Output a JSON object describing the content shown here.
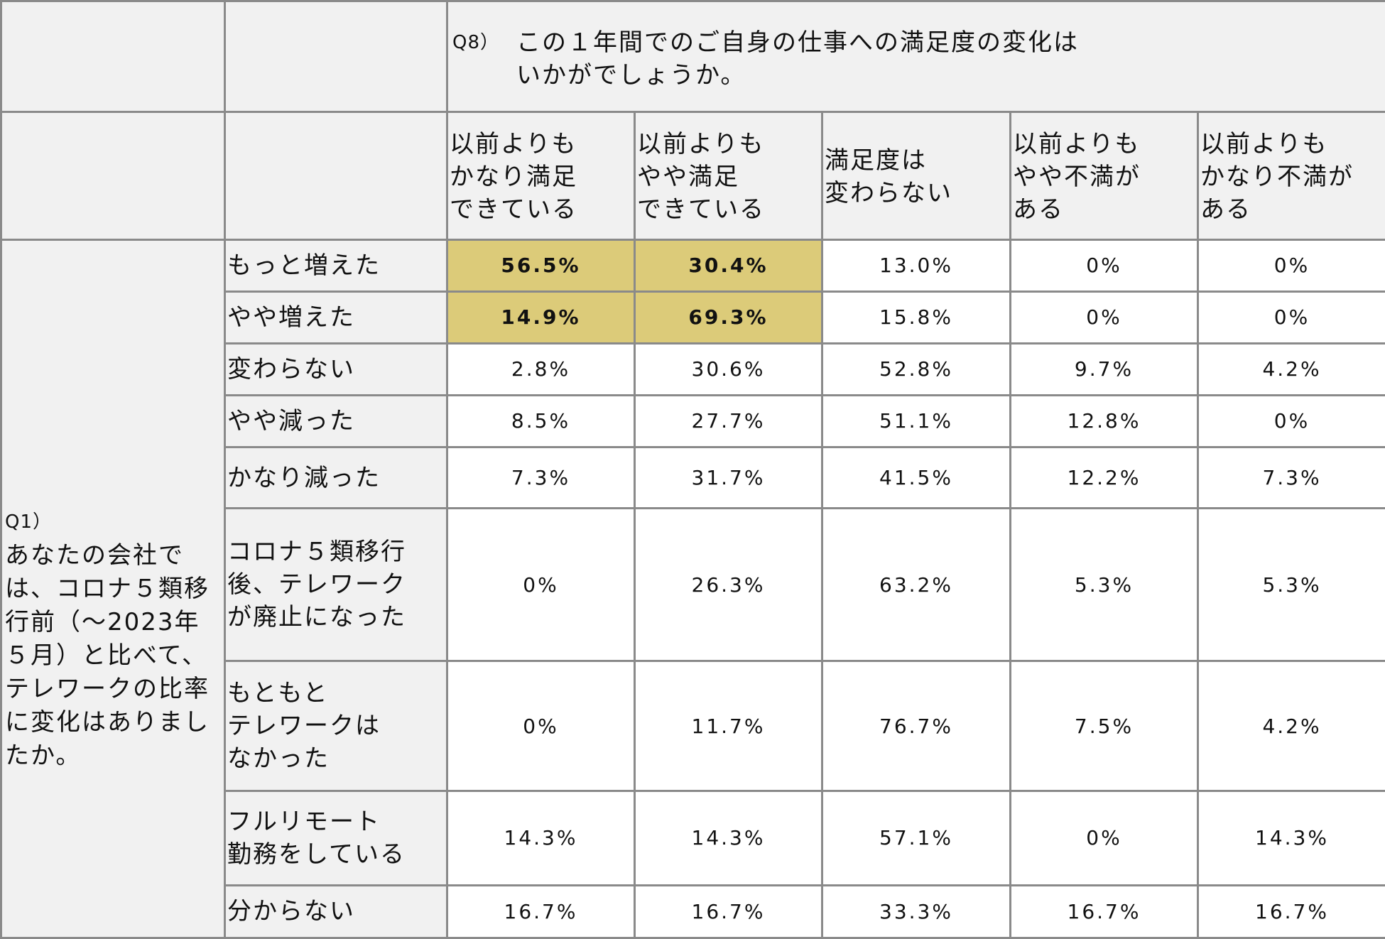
{
  "q8_question": {
    "tag": "Q8）",
    "text": "この１年間でのご自身の仕事への満足度の変化は\nいかがでしょうか。"
  },
  "q1_question": {
    "tag": "Q1）",
    "text": "あなたの会社では、コロナ５類移行前（～2023年５月）と比べて、テレワークの比率に変化はありましたか。"
  },
  "columns": [
    "以前よりも\nかなり満足\nできている",
    "以前よりも\nやや満足\nできている",
    "満足度は\n変わらない",
    "以前よりも\nやや不満が\nある",
    "以前よりも\nかなり不満が\nある"
  ],
  "highlight_color": "#dccb79",
  "chart_data": {
    "type": "table",
    "title": "Q8）この１年間でのご自身の仕事への満足度の変化はいかがでしょうか。",
    "columns": [
      "以前よりもかなり満足できている",
      "以前よりもやや満足できている",
      "満足度は変わらない",
      "以前よりもやや不満がある",
      "以前よりもかなり不満がある"
    ],
    "rows": [
      {
        "label": "もっと増えた",
        "values": [
          "56.5%",
          "30.4%",
          "13.0%",
          "0%",
          "0%"
        ],
        "highlight": [
          true,
          true,
          false,
          false,
          false
        ]
      },
      {
        "label": "やや増えた",
        "values": [
          "14.9%",
          "69.3%",
          "15.8%",
          "0%",
          "0%"
        ],
        "highlight": [
          true,
          true,
          false,
          false,
          false
        ]
      },
      {
        "label": "変わらない",
        "values": [
          "2.8%",
          "30.6%",
          "52.8%",
          "9.7%",
          "4.2%"
        ]
      },
      {
        "label": "やや減った",
        "values": [
          "8.5%",
          "27.7%",
          "51.1%",
          "12.8%",
          "0%"
        ]
      },
      {
        "label": "かなり減った",
        "values": [
          "7.3%",
          "31.7%",
          "41.5%",
          "12.2%",
          "7.3%"
        ]
      },
      {
        "label": "コロナ５類移行\n後、テレワーク\nが廃止になった",
        "values": [
          "0%",
          "26.3%",
          "63.2%",
          "5.3%",
          "5.3%"
        ]
      },
      {
        "label": "もともと\nテレワークは\nなかった",
        "values": [
          "0%",
          "11.7%",
          "76.7%",
          "7.5%",
          "4.2%"
        ]
      },
      {
        "label": "フルリモート\n勤務をしている",
        "values": [
          "14.3%",
          "14.3%",
          "57.1%",
          "0%",
          "14.3%"
        ]
      },
      {
        "label": "分からない",
        "values": [
          "16.7%",
          "16.7%",
          "33.3%",
          "16.7%",
          "16.7%"
        ]
      }
    ]
  }
}
